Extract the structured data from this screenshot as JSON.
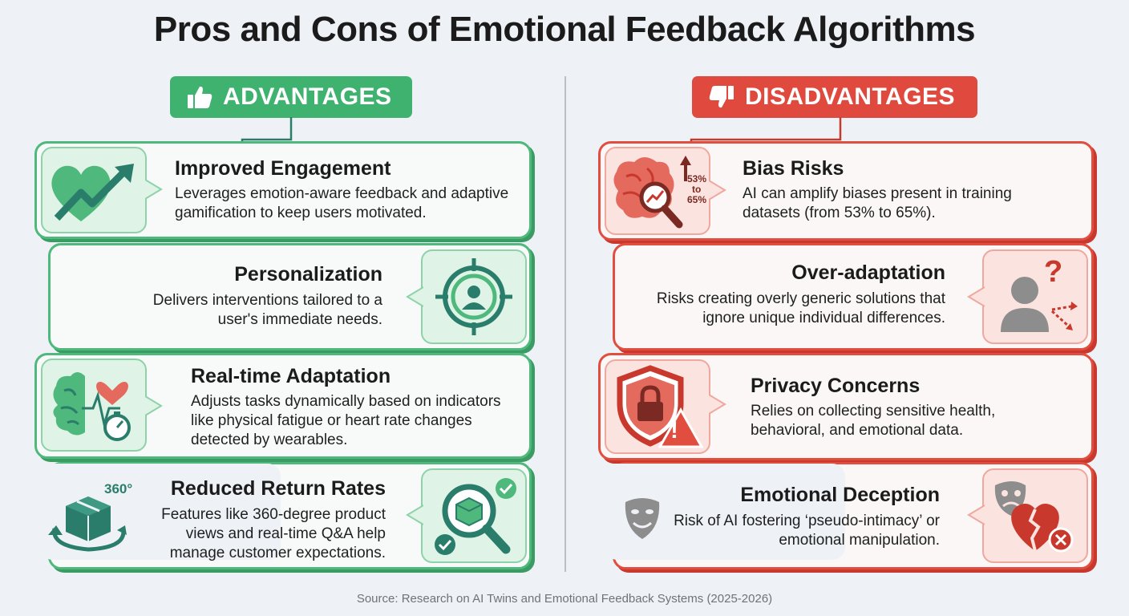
{
  "title": "Pros and Cons of Emotional Feedback Algorithms",
  "advantages": {
    "header": "ADVANTAGES",
    "items": [
      {
        "title": "Improved Engagement",
        "description": "Leverages emotion-aware feedback and adaptive gamification to keep users motivated.",
        "icon": "heart-growth-icon"
      },
      {
        "title": "Personalization",
        "description": "Delivers interventions tailored to a user's immediate needs.",
        "icon": "target-user-icon"
      },
      {
        "title": "Real-time Adaptation",
        "description": "Adjusts tasks dynamically based on indicators like physical fatigue or heart rate changes detected by wearables.",
        "icon": "brain-heartrate-icon"
      },
      {
        "title": "Reduced Return Rates",
        "description": "Features like 360-degree product views and real-time Q&A help manage customer expectations.",
        "icon": "package-search-icon",
        "badge": "360°"
      }
    ]
  },
  "disadvantages": {
    "header": "DISADVANTAGES",
    "items": [
      {
        "title": "Bias Risks",
        "description": "AI can amplify biases present in training datasets (from 53% to 65%).",
        "icon": "brain-magnifier-icon",
        "stat": "53%",
        "stat_mid": "to",
        "stat_end": "65%"
      },
      {
        "title": "Over-adaptation",
        "description": "Risks creating overly generic solutions that ignore unique individual differences.",
        "icon": "person-question-icon",
        "glyph": "?"
      },
      {
        "title": "Privacy Concerns",
        "description": "Relies on collecting sensitive health, behavioral, and emotional data.",
        "icon": "shield-lock-warning-icon",
        "glyph": "!"
      },
      {
        "title": "Emotional Deception",
        "description": "Risk of AI fostering ‘pseudo-intimacy’ or emotional manipulation.",
        "icon": "mask-broken-heart-icon"
      }
    ]
  },
  "source": "Source: Research on AI Twins and Emotional Feedback Systems (2025-2026)",
  "colors": {
    "green": "#3eb26e",
    "red": "#e04a3e",
    "teal": "#2a7d6b"
  }
}
